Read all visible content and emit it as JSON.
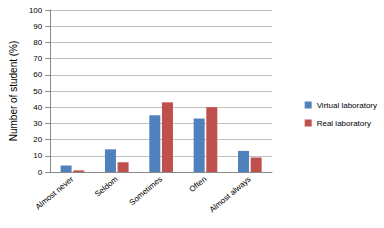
{
  "chart_data": {
    "type": "bar",
    "y_label": "Number of student (%)",
    "categories": [
      "Almost never",
      "Seldom",
      "Sometimes",
      "Often",
      "Almost always"
    ],
    "series": [
      {
        "name": "Virtual laboratory",
        "color": "#4f81bd",
        "values": [
          4,
          14,
          35,
          33,
          13
        ]
      },
      {
        "name": "Real laboratory",
        "color": "#c0504d",
        "values": [
          1,
          6,
          43,
          40,
          9
        ]
      }
    ],
    "ylim": [
      0,
      100
    ],
    "yticks": [
      0,
      10,
      20,
      30,
      40,
      50,
      60,
      70,
      80,
      90,
      100
    ],
    "grid": true,
    "legend": "right"
  }
}
